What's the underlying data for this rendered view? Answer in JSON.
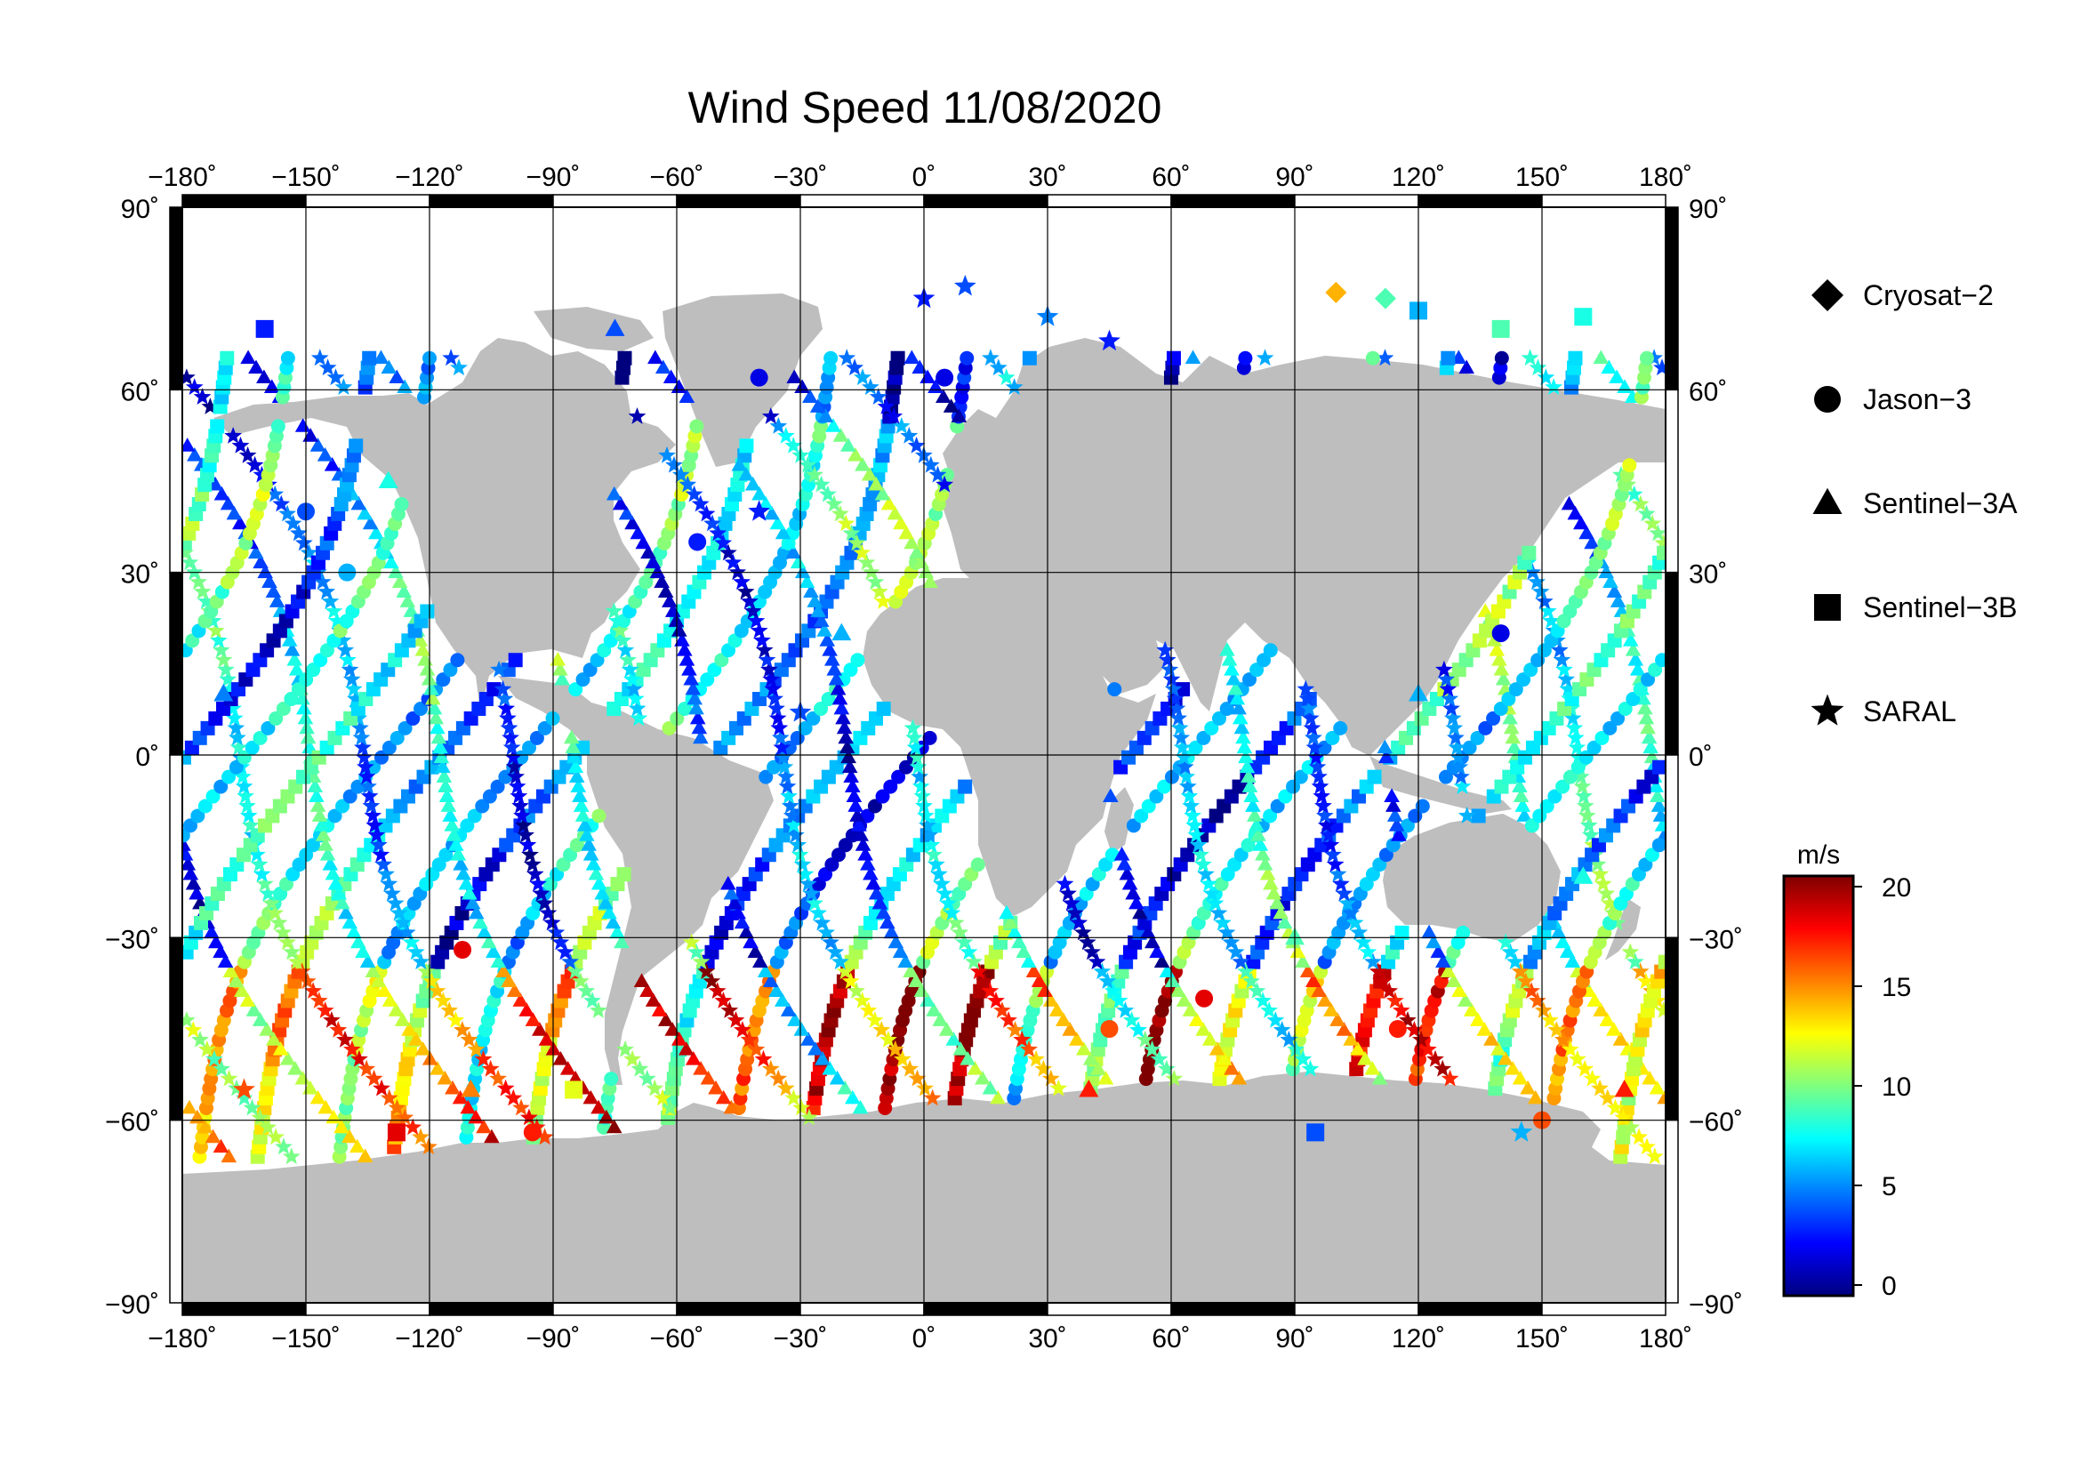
{
  "title": "Wind Speed 11/08/2020",
  "axes": {
    "lon_ticks": [
      {
        "value": -180,
        "label": "−180˚"
      },
      {
        "value": -150,
        "label": "−150˚"
      },
      {
        "value": -120,
        "label": "−120˚"
      },
      {
        "value": -90,
        "label": "−90˚"
      },
      {
        "value": -60,
        "label": "−60˚"
      },
      {
        "value": -30,
        "label": "−30˚"
      },
      {
        "value": 0,
        "label": "0˚"
      },
      {
        "value": 30,
        "label": "30˚"
      },
      {
        "value": 60,
        "label": "60˚"
      },
      {
        "value": 90,
        "label": "90˚"
      },
      {
        "value": 120,
        "label": "120˚"
      },
      {
        "value": 150,
        "label": "150˚"
      },
      {
        "value": 180,
        "label": "180˚"
      }
    ],
    "lat_ticks_left": [
      {
        "value": 90,
        "label": "90˚"
      },
      {
        "value": 60,
        "label": "60˚"
      },
      {
        "value": 30,
        "label": "30˚"
      },
      {
        "value": 0,
        "label": "0˚"
      },
      {
        "value": -30,
        "label": "−30˚"
      },
      {
        "value": -60,
        "label": "−60˚"
      },
      {
        "value": -90,
        "label": "−90˚"
      }
    ],
    "lat_ticks_right": [
      {
        "value": 90,
        "label": "90˚"
      },
      {
        "value": 60,
        "label": "60˚"
      },
      {
        "value": 30,
        "label": "30˚"
      },
      {
        "value": 0,
        "label": "0˚"
      },
      {
        "value": -30,
        "label": "−30˚"
      },
      {
        "value": -60,
        "label": "−60˚"
      },
      {
        "value": -90,
        "label": "−90˚"
      }
    ],
    "lon_range": [
      -180,
      180
    ],
    "lat_range": [
      -90,
      90
    ],
    "grid": true
  },
  "legend": {
    "placement": "right",
    "items": [
      {
        "label": "Cryosat−2",
        "marker": "diamond"
      },
      {
        "label": "Jason−3",
        "marker": "circle"
      },
      {
        "label": "Sentinel−3A",
        "marker": "triangle"
      },
      {
        "label": "Sentinel−3B",
        "marker": "square"
      },
      {
        "label": "SARAL",
        "marker": "star"
      }
    ]
  },
  "colorbar": {
    "unit": "m/s",
    "min": 0,
    "max": 20,
    "ticks": [
      {
        "value": 20,
        "label": "20"
      },
      {
        "value": 15,
        "label": "15"
      },
      {
        "value": 10,
        "label": "10"
      },
      {
        "value": 5,
        "label": "5"
      },
      {
        "value": 0,
        "label": "0"
      }
    ],
    "colormap": [
      "#00007f",
      "#0000ff",
      "#007fff",
      "#00ffff",
      "#7fff7f",
      "#ffff00",
      "#ff7f00",
      "#ff0000",
      "#7f0000"
    ]
  },
  "colors": {
    "land": "#bebebe",
    "ocean": "#ffffff",
    "frame": "#000000"
  },
  "chart_data": {
    "type": "scatter",
    "title": "Wind Speed 11/08/2020",
    "xlabel": "",
    "ylabel": "",
    "xlim": [
      -180,
      180
    ],
    "ylim": [
      -90,
      90
    ],
    "color_variable": "wind speed (m/s)",
    "series": [
      {
        "name": "Cryosat−2",
        "marker": "diamond",
        "points": [
          {
            "lon": 100,
            "lat": 76,
            "v": 14
          },
          {
            "lon": 112,
            "lat": 75,
            "v": 9
          }
        ]
      },
      {
        "name": "Jason−3",
        "marker": "circle",
        "points": [
          {
            "lon": -150,
            "lat": 40,
            "v": 4
          },
          {
            "lon": -140,
            "lat": 30,
            "v": 6
          },
          {
            "lon": -112,
            "lat": -32,
            "v": 18
          },
          {
            "lon": -95,
            "lat": -62,
            "v": 17
          },
          {
            "lon": -55,
            "lat": 35,
            "v": 3
          },
          {
            "lon": -40,
            "lat": 62,
            "v": 2
          },
          {
            "lon": 5,
            "lat": 62,
            "v": 2
          },
          {
            "lon": 45,
            "lat": -45,
            "v": 16
          },
          {
            "lon": 68,
            "lat": -40,
            "v": 18
          },
          {
            "lon": 115,
            "lat": -45,
            "v": 17
          },
          {
            "lon": 140,
            "lat": 20,
            "v": 2
          },
          {
            "lon": 150,
            "lat": -60,
            "v": 16
          }
        ]
      },
      {
        "name": "Sentinel−3A",
        "marker": "triangle",
        "points": [
          {
            "lon": -170,
            "lat": 10,
            "v": 5
          },
          {
            "lon": -130,
            "lat": 45,
            "v": 8
          },
          {
            "lon": -110,
            "lat": -55,
            "v": 15
          },
          {
            "lon": -75,
            "lat": 70,
            "v": 4
          },
          {
            "lon": -20,
            "lat": 20,
            "v": 6
          },
          {
            "lon": 40,
            "lat": -55,
            "v": 17
          },
          {
            "lon": 90,
            "lat": -30,
            "v": 9
          },
          {
            "lon": 120,
            "lat": 10,
            "v": 6
          },
          {
            "lon": 160,
            "lat": -20,
            "v": 8
          },
          {
            "lon": 170,
            "lat": -55,
            "v": 17
          }
        ]
      },
      {
        "name": "Sentinel−3B",
        "marker": "square",
        "points": [
          {
            "lon": -160,
            "lat": 70,
            "v": 3
          },
          {
            "lon": -128,
            "lat": -62,
            "v": 18
          },
          {
            "lon": -85,
            "lat": -55,
            "v": 12
          },
          {
            "lon": 95,
            "lat": -62,
            "v": 4
          },
          {
            "lon": 120,
            "lat": 73,
            "v": 6
          },
          {
            "lon": 140,
            "lat": 70,
            "v": 9
          },
          {
            "lon": 160,
            "lat": 72,
            "v": 8
          }
        ]
      },
      {
        "name": "SARAL",
        "marker": "star",
        "points": [
          {
            "lon": -40,
            "lat": 40,
            "v": 3
          },
          {
            "lon": -30,
            "lat": 7,
            "v": 4
          },
          {
            "lon": 0,
            "lat": 75,
            "v": 3
          },
          {
            "lon": 10,
            "lat": 77,
            "v": 4
          },
          {
            "lon": 30,
            "lat": 72,
            "v": 5
          },
          {
            "lon": 45,
            "lat": 68,
            "v": 3
          },
          {
            "lon": 145,
            "lat": -62,
            "v": 6
          },
          {
            "lon": -165,
            "lat": -55,
            "v": 16
          }
        ]
      }
    ]
  }
}
